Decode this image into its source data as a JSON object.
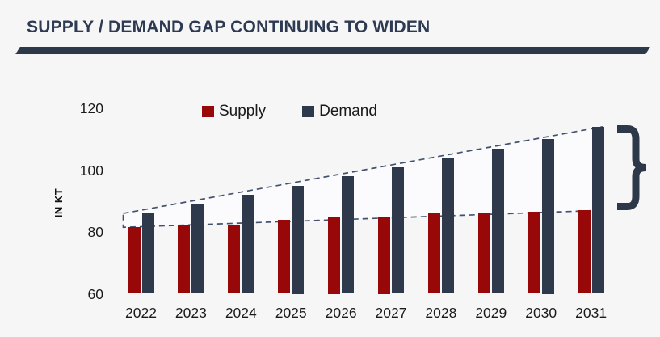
{
  "header": {
    "title": "SUPPLY / DEMAND GAP CONTINUING TO WIDEN"
  },
  "colors": {
    "background": "#f6f6f7",
    "title": "#2d3a52",
    "divider": "#2d3949",
    "supply": "#990808",
    "demand": "#2e3a4c",
    "dashed_line": "#42526e",
    "gap_fill": "#fbfbfd",
    "axis_text": "#1a1a1a",
    "brace": "#2d3949"
  },
  "chart_data": {
    "type": "bar",
    "title": "SUPPLY / DEMAND GAP CONTINUING TO WIDEN",
    "categories": [
      "2022",
      "2023",
      "2024",
      "2025",
      "2026",
      "2027",
      "2028",
      "2029",
      "2030",
      "2031"
    ],
    "series": [
      {
        "name": "Supply",
        "color_key": "supply",
        "values": [
          81.5,
          82,
          82,
          84,
          85,
          85,
          86,
          86,
          86.5,
          87
        ]
      },
      {
        "name": "Demand",
        "color_key": "demand",
        "values": [
          86,
          89,
          92,
          95,
          98,
          101,
          104,
          107,
          110,
          114
        ]
      }
    ],
    "xlabel": "",
    "ylabel": "IN KT",
    "ylim": [
      60,
      120
    ],
    "yticks": [
      60,
      80,
      100,
      120
    ],
    "grid": false,
    "legend_position": "top-center",
    "annotations": [
      {
        "name": "gap-wedge",
        "desc": "dashed funnel between supply tops and demand tops showing the widening gap"
      },
      {
        "name": "gap-brace",
        "desc": "curly brace at right marking the 2031 supply/demand gap"
      }
    ]
  }
}
